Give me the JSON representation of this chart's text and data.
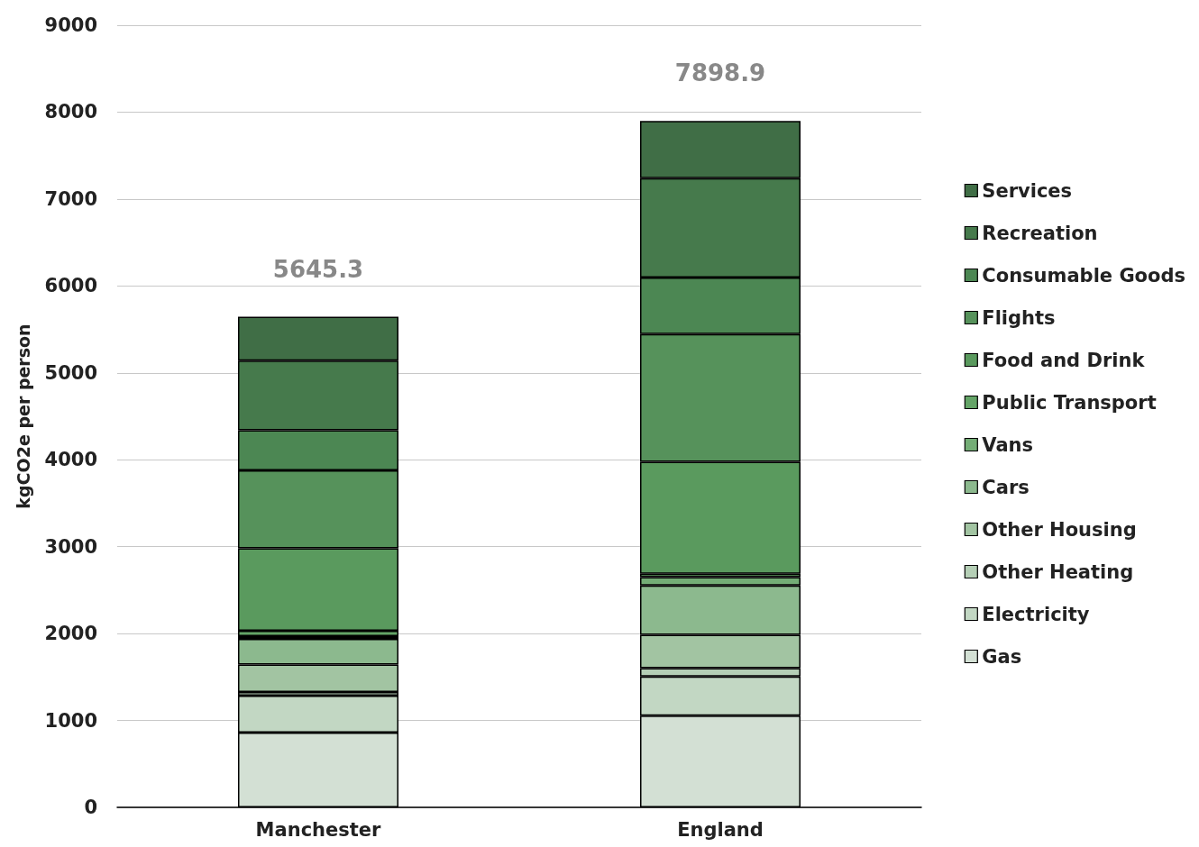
{
  "chart_data": {
    "type": "bar",
    "stacked": true,
    "ylabel": "kgCO2e per person",
    "categories": [
      "Manchester",
      "England"
    ],
    "ylim": [
      0,
      9000
    ],
    "yticks": [
      0,
      1000,
      2000,
      3000,
      4000,
      5000,
      6000,
      7000,
      8000,
      9000
    ],
    "grid": "y",
    "legend": "right",
    "totals": [
      "5645.3",
      "7898.9"
    ],
    "series": [
      {
        "name": "Gas",
        "color": "#d3e0d4",
        "values": [
          861,
          1056
        ]
      },
      {
        "name": "Electricity",
        "color": "#c2d7c3",
        "values": [
          424,
          450
        ]
      },
      {
        "name": "Other Heating",
        "color": "#b5cfb6",
        "values": [
          42,
          97
        ]
      },
      {
        "name": "Other Housing",
        "color": "#a2c4a2",
        "values": [
          316,
          382
        ]
      },
      {
        "name": "Cars",
        "color": "#8cb98e",
        "values": [
          296,
          567
        ]
      },
      {
        "name": "Vans",
        "color": "#74ad76",
        "values": [
          31,
          98
        ]
      },
      {
        "name": "Public Transport",
        "color": "#64a467",
        "values": [
          62,
          37
        ]
      },
      {
        "name": "Food and Drink",
        "color": "#5a9a5e",
        "values": [
          948,
          1290
        ]
      },
      {
        "name": "Flights",
        "color": "#56925b",
        "values": [
          898,
          1470
        ]
      },
      {
        "name": "Consumable Goods",
        "color": "#4c8753",
        "values": [
          462,
          650
        ]
      },
      {
        "name": "Recreation",
        "color": "#467a4c",
        "values": [
          799,
          1144
        ]
      },
      {
        "name": "Services",
        "color": "#406e46",
        "values": [
          506,
          658
        ]
      }
    ]
  }
}
